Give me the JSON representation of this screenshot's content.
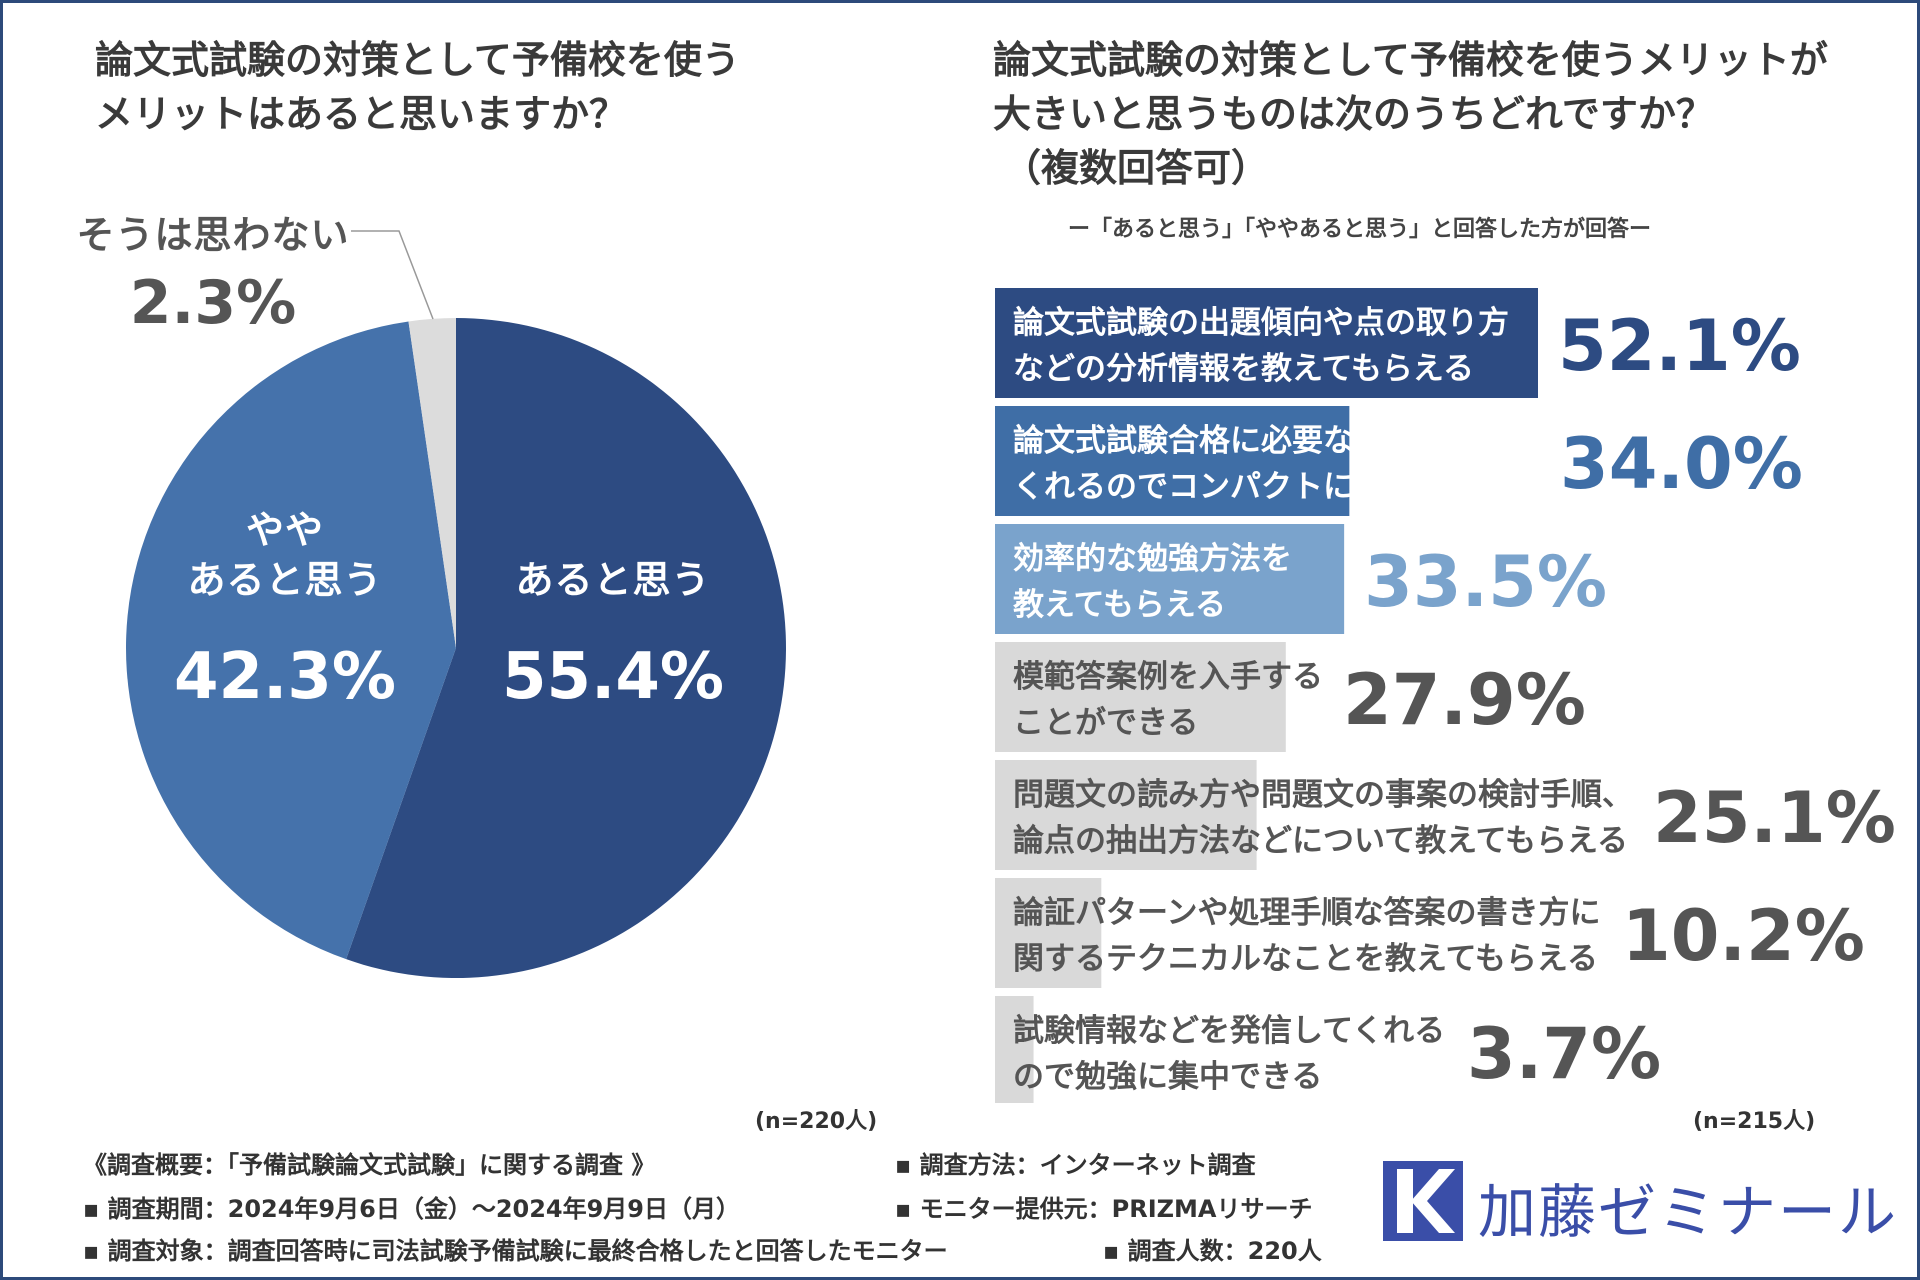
{
  "left": {
    "title_line1": "論文式試験の対策として予備校を使う",
    "title_line2": "メリットはあると思いますか？",
    "n_label": "(n=220人)"
  },
  "right": {
    "title_line1": "論文式試験の対策として予備校を使うメリットが",
    "title_line2": "大きいと思うものは次のうちどれですか？",
    "title_line3": "（複数回答可）",
    "note": "ー「あると思う」「ややあると思う」と回答した方が回答ー",
    "n_label": "(n=215人)"
  },
  "footer": {
    "overview": "《調査概要：「予備試験論文式試験」に関する調査 》",
    "period": "▪ 調査期間：2024年9月6日（金）～2024年9月9日（月）",
    "target": "▪ 調査対象：調査回答時に司法試験予備試験に最終合格したと回答したモニター",
    "method": "▪ 調査方法：インターネット調査",
    "provider": "▪ モニター提供元：PRIZMAリサーチ",
    "count": "▪ 調査人数：220人"
  },
  "logo": {
    "text": "加藤ゼミナール",
    "icon": "k-logo-icon",
    "color": "#3a4ea8"
  },
  "chart_data": [
    {
      "type": "pie",
      "title": "論文式試験の対策として予備校を使うメリットはあると思いますか？",
      "slices": [
        {
          "label": "あると思う",
          "label_lines": [
            "あると思う"
          ],
          "value": 55.4,
          "display": "55.4%",
          "color": "#2d4b82",
          "text_color": "#ffffff"
        },
        {
          "label": "ややあると思う",
          "label_lines": [
            "やや",
            "あると思う"
          ],
          "value": 42.3,
          "display": "42.3%",
          "color": "#4572ab",
          "text_color": "#ffffff"
        },
        {
          "label": "そうは思わない",
          "label_lines": [
            "そうは思わない"
          ],
          "value": 2.3,
          "display": "2.3%",
          "color": "#dcdcdc",
          "text_color": "#555555"
        }
      ]
    },
    {
      "type": "bar",
      "orientation": "horizontal",
      "title": "論文式試験の対策として予備校を使うメリットが大きいと思うものは次のうちどれですか？（複数回答可）",
      "xlim": [
        0,
        100
      ],
      "categories": [
        {
          "lines": [
            "論文式試験の出題傾向や点の取り方",
            "などの分析情報を教えてもらえる"
          ],
          "value": 52.1,
          "display": "52.1%",
          "color": "#2d4b82",
          "value_color": "#2d4b82",
          "text_color": "#ffffff"
        },
        {
          "lines": [
            "論文式試験合格に必要な知識を絞って",
            "くれるのでコンパクトに勉強ができる"
          ],
          "value": 34.0,
          "display": "34.0%",
          "color": "#3f6ea6",
          "value_color": "#3f6ea6",
          "text_color": "#ffffff"
        },
        {
          "lines": [
            "効率的な勉強方法を",
            "教えてもらえる"
          ],
          "value": 33.5,
          "display": "33.5%",
          "color": "#7aa3cc",
          "value_color": "#7aa3cc",
          "text_color": "#ffffff"
        },
        {
          "lines": [
            "模範答案例を入手する",
            "ことができる"
          ],
          "value": 27.9,
          "display": "27.9%",
          "color": "#d9d9d9",
          "value_color": "#555555",
          "text_color": "#555555"
        },
        {
          "lines": [
            "問題文の読み方や問題文の事案の検討手順、",
            "論点の抽出方法などについて教えてもらえる"
          ],
          "value": 25.1,
          "display": "25.1%",
          "color": "#d9d9d9",
          "value_color": "#555555",
          "text_color": "#555555"
        },
        {
          "lines": [
            "論証パターンや処理手順な答案の書き方に",
            "関するテクニカルなことを教えてもらえる"
          ],
          "value": 10.2,
          "display": "10.2%",
          "color": "#d9d9d9",
          "value_color": "#555555",
          "text_color": "#555555"
        },
        {
          "lines": [
            "試験情報などを発信してくれる",
            "ので勉強に集中できる"
          ],
          "value": 3.7,
          "display": "3.7%",
          "color": "#d9d9d9",
          "value_color": "#555555",
          "text_color": "#555555"
        }
      ]
    }
  ]
}
